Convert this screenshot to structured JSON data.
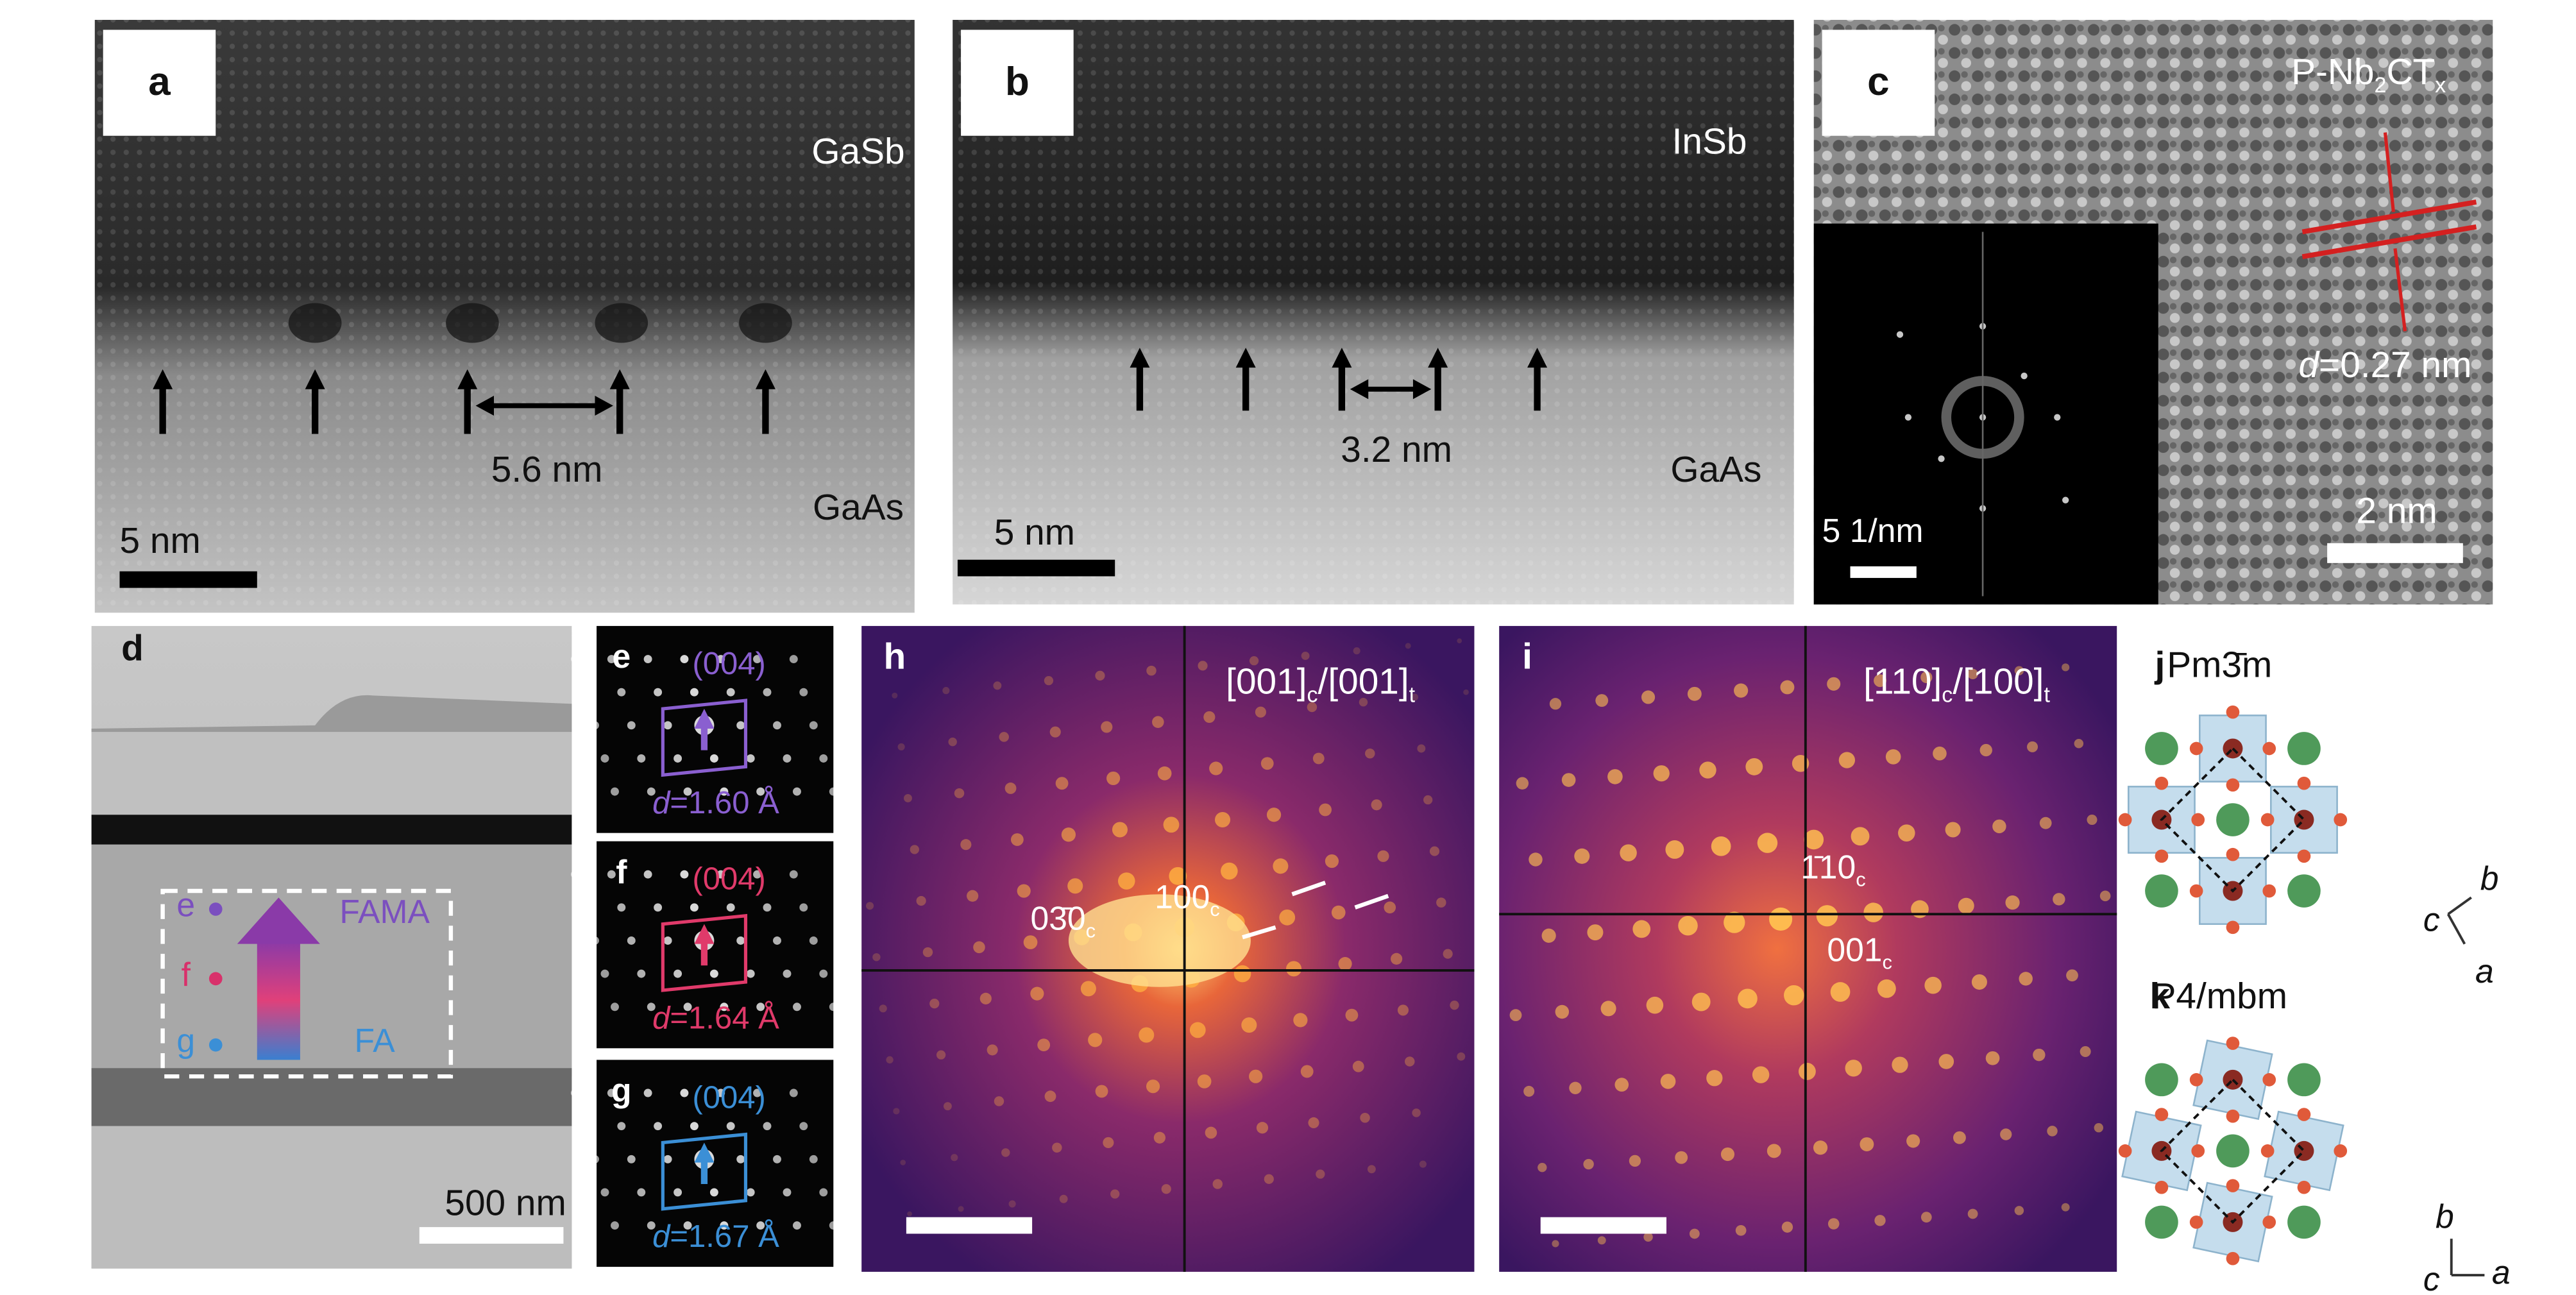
{
  "panel_a": {
    "label": "a",
    "top_material": "GaSb",
    "bottom_material": "GaAs",
    "spacing": "5.6 nm",
    "scale": "5 nm"
  },
  "panel_b": {
    "label": "b",
    "top_material": "InSb",
    "bottom_material": "GaAs",
    "spacing": "3.2 nm",
    "scale": "5 nm"
  },
  "panel_c": {
    "label": "c",
    "material": [
      "P-Nb",
      "2",
      "CT",
      "x"
    ],
    "d_spacing": [
      "d",
      "=0.27 nm"
    ],
    "scale": "2 nm",
    "inset_scale": "5 1/nm"
  },
  "panel_d": {
    "label": "d",
    "points": [
      "e",
      "f",
      "g"
    ],
    "top_phase": "FAMA",
    "bottom_phase": "FA",
    "scale": "500 nm"
  },
  "panel_e": {
    "label": "e",
    "plane": "(004)",
    "d_spacing": [
      "d",
      "=1.60 Å"
    ]
  },
  "panel_f": {
    "label": "f",
    "plane": "(004)",
    "d_spacing": [
      "d",
      "=1.64 Å"
    ]
  },
  "panel_g": {
    "label": "g",
    "plane": "(004)",
    "d_spacing": [
      "d",
      "=1.67 Å"
    ]
  },
  "panel_h": {
    "label": "h",
    "zone_axis": [
      "[001]",
      "c",
      "/[001]",
      "t"
    ],
    "spots": [
      [
        "03̄0",
        "c"
      ],
      [
        "100",
        "c"
      ]
    ]
  },
  "panel_i": {
    "label": "i",
    "zone_axis": [
      "[110]",
      "c",
      "/[100]",
      "t"
    ],
    "spots": [
      [
        "1̄10",
        "c"
      ],
      [
        "001",
        "c"
      ]
    ]
  },
  "panel_j": {
    "label": "j",
    "space_group": "Pm3̄m",
    "axes": [
      "b",
      "c",
      "a"
    ]
  },
  "panel_k": {
    "label": "k",
    "space_group": "P4/mbm",
    "axes": [
      "b",
      "c",
      "a"
    ]
  }
}
